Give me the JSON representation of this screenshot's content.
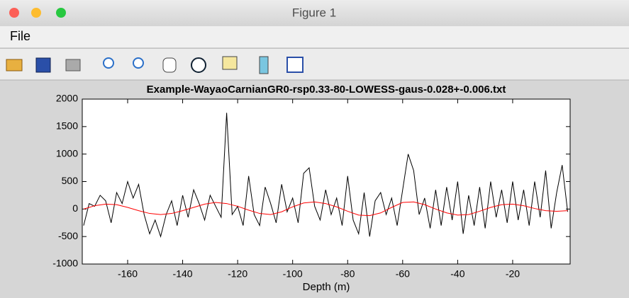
{
  "window": {
    "title": "Figure 1",
    "menu": [
      "File"
    ]
  },
  "chart_data": {
    "type": "line",
    "title": "Example-WayaoCarnianGR0-rsp0.33-80-LOWESS-gaus-0.028+-0.006.txt",
    "x_label": "Depth (m)",
    "xlim": [
      -176.5,
      0.9
    ],
    "ylim": [
      -1000,
      2000
    ],
    "xticks": [
      -160,
      -140,
      -120,
      -100,
      -80,
      -60,
      -40,
      -20
    ],
    "yticks": [
      -1000,
      -500,
      0,
      500,
      1000,
      1500,
      2000
    ],
    "grid": false,
    "series": [
      {
        "color": "#000000",
        "x": [
          -176,
          -174,
          -172,
          -170,
          -168,
          -166,
          -164,
          -162,
          -160,
          -158,
          -156,
          -154,
          -152,
          -150,
          -148,
          -146,
          -144,
          -142,
          -140,
          -138,
          -136,
          -134,
          -132,
          -130,
          -128,
          -126,
          -124,
          -122,
          -120,
          -118,
          -116,
          -114,
          -112,
          -110,
          -108,
          -106,
          -104,
          -102,
          -100,
          -98,
          -96,
          -94,
          -92,
          -90,
          -88,
          -86,
          -84,
          -82,
          -80,
          -78,
          -76,
          -74,
          -72,
          -70,
          -68,
          -66,
          -64,
          -62,
          -60,
          -58,
          -56,
          -54,
          -52,
          -50,
          -48,
          -46,
          -44,
          -42,
          -40,
          -38,
          -36,
          -34,
          -32,
          -30,
          -28,
          -26,
          -24,
          -22,
          -20,
          -18,
          -16,
          -14,
          -12,
          -10,
          -8,
          -6,
          -4,
          -2,
          0
        ],
        "values": [
          -300,
          100,
          50,
          250,
          150,
          -250,
          300,
          100,
          500,
          200,
          450,
          -100,
          -450,
          -200,
          -500,
          -100,
          150,
          -300,
          250,
          -150,
          350,
          100,
          -200,
          250,
          50,
          -150,
          1750,
          -100,
          50,
          -300,
          600,
          -100,
          -300,
          400,
          100,
          -250,
          450,
          -50,
          200,
          -250,
          650,
          750,
          50,
          -200,
          350,
          -100,
          200,
          -300,
          600,
          -200,
          -450,
          300,
          -500,
          150,
          300,
          -100,
          200,
          -300,
          350,
          1000,
          700,
          -100,
          200,
          -350,
          350,
          -300,
          400,
          -200,
          500,
          -450,
          250,
          -300,
          400,
          -350,
          500,
          -150,
          350,
          -250,
          500,
          -200,
          350,
          -300,
          500,
          -150,
          700,
          -350,
          300,
          800,
          -50
        ]
      },
      {
        "color": "#ff0000",
        "x": [
          -176,
          -172,
          -168,
          -164,
          -160,
          -156,
          -152,
          -148,
          -144,
          -140,
          -136,
          -132,
          -128,
          -124,
          -120,
          -116,
          -112,
          -108,
          -104,
          -100,
          -96,
          -92,
          -88,
          -84,
          -80,
          -76,
          -72,
          -68,
          -64,
          -60,
          -56,
          -52,
          -48,
          -44,
          -40,
          -36,
          -32,
          -28,
          -24,
          -20,
          -16,
          -12,
          -8,
          -4,
          0
        ],
        "values": [
          0,
          60,
          90,
          80,
          30,
          -30,
          -80,
          -100,
          -80,
          -30,
          30,
          90,
          120,
          100,
          50,
          -20,
          -80,
          -100,
          -50,
          40,
          110,
          130,
          100,
          40,
          -40,
          -110,
          -120,
          -70,
          30,
          120,
          130,
          80,
          0,
          -70,
          -110,
          -100,
          -40,
          30,
          80,
          90,
          60,
          10,
          -30,
          -40,
          -30
        ]
      }
    ]
  }
}
